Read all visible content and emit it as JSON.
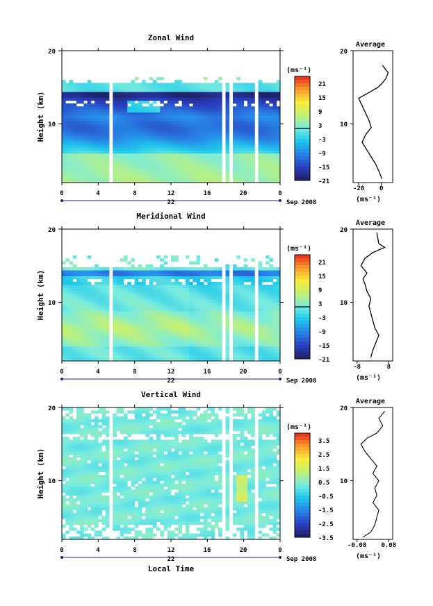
{
  "chart_data": [
    {
      "type": "heatmap",
      "title": "Zonal Wind",
      "ylabel": "Height (km)",
      "xlabel": "",
      "xlim": [
        0,
        24
      ],
      "ylim": [
        2,
        20
      ],
      "x_ticks": [
        "0",
        "4",
        "8",
        "12",
        "16",
        "20",
        "0"
      ],
      "y_ticks": [
        "20",
        "10"
      ],
      "date_label": "22",
      "month_label": "Sep 2008",
      "colorbar": {
        "unit": "(ms⁻¹)",
        "ticks": [
          "21",
          "15",
          "9",
          "3",
          "-3",
          "-9",
          "-15",
          "-21"
        ],
        "range": [
          -24,
          24
        ],
        "zero_line": true
      },
      "profile": {
        "title": "Average",
        "xlabel": "(ms⁻¹)",
        "x_ticks": [
          "-20",
          "0"
        ],
        "xlim": [
          -25,
          10
        ],
        "y_ticks": [
          "20",
          "10"
        ],
        "points": [
          [
            0.5,
            2.5
          ],
          [
            -2,
            3.5
          ],
          [
            -5,
            4.5
          ],
          [
            -9,
            5.5
          ],
          [
            -13,
            6.5
          ],
          [
            -17,
            7.5
          ],
          [
            -14,
            8.5
          ],
          [
            -9,
            9.5
          ],
          [
            -11,
            10.5
          ],
          [
            -14,
            11.5
          ],
          [
            -17,
            12.5
          ],
          [
            -20,
            13.5
          ],
          [
            -12,
            14.2
          ],
          [
            -3,
            15
          ],
          [
            1,
            15.6
          ],
          [
            4,
            16.2
          ],
          [
            6,
            17
          ],
          [
            3,
            17.6
          ],
          [
            1,
            18
          ]
        ]
      },
      "gaps_hours": [
        5.6,
        17.7,
        18.5,
        21.5
      ]
    },
    {
      "type": "heatmap",
      "title": "Meridional Wind",
      "ylabel": "Height (km)",
      "xlabel": "",
      "xlim": [
        0,
        24
      ],
      "ylim": [
        2,
        20
      ],
      "x_ticks": [
        "0",
        "4",
        "8",
        "12",
        "16",
        "20",
        "0"
      ],
      "y_ticks": [
        "20",
        "10"
      ],
      "date_label": "22",
      "month_label": "Sep 2008",
      "colorbar": {
        "unit": "(ms⁻¹)",
        "ticks": [
          "21",
          "15",
          "9",
          "3",
          "-3",
          "-9",
          "-15",
          "-21"
        ],
        "range": [
          -24,
          24
        ],
        "zero_line": true
      },
      "profile": {
        "title": "Average",
        "xlabel": "(ms⁻¹)",
        "x_ticks": [
          "-8",
          "8"
        ],
        "xlim": [
          -10,
          10
        ],
        "y_ticks": [
          "20",
          "10"
        ],
        "points": [
          [
            -1,
            2.5
          ],
          [
            0,
            3.5
          ],
          [
            1.5,
            4.5
          ],
          [
            3,
            5.5
          ],
          [
            1,
            6.5
          ],
          [
            0,
            7.5
          ],
          [
            -1,
            8.5
          ],
          [
            -2,
            9.5
          ],
          [
            -1,
            10.5
          ],
          [
            -3,
            11.5
          ],
          [
            -4,
            12.5
          ],
          [
            -5,
            13.2
          ],
          [
            -3,
            14
          ],
          [
            -6,
            15
          ],
          [
            -4,
            16
          ],
          [
            0,
            16.8
          ],
          [
            6,
            17.5
          ],
          [
            3,
            18
          ],
          [
            2,
            19.5
          ]
        ]
      },
      "gaps_hours": [
        5.6,
        17.7,
        18.5,
        21.5
      ]
    },
    {
      "type": "heatmap",
      "title": "Vertical Wind",
      "ylabel": "Height (km)",
      "xlabel": "Local Time",
      "xlim": [
        0,
        24
      ],
      "ylim": [
        2,
        20
      ],
      "x_ticks": [
        "0",
        "4",
        "8",
        "12",
        "16",
        "20",
        "0"
      ],
      "y_ticks": [
        "20",
        "10"
      ],
      "date_label": "22",
      "month_label": "Sep 2008",
      "colorbar": {
        "unit": "(ms⁻¹)",
        "ticks": [
          "3.5",
          "2.5",
          "1.5",
          "0.5",
          "-0.5",
          "-1.5",
          "-2.5",
          "-3.5"
        ],
        "range": [
          -4,
          4
        ],
        "zero_line": false
      },
      "profile": {
        "title": "Average",
        "xlabel": "(ms⁻¹)",
        "x_ticks": [
          "-0.08",
          "0.08"
        ],
        "xlim": [
          -0.1,
          0.1
        ],
        "y_ticks": [
          "20",
          "10"
        ],
        "points": [
          [
            -0.05,
            2.3
          ],
          [
            -0.01,
            3
          ],
          [
            0.01,
            4
          ],
          [
            0.02,
            5
          ],
          [
            0.03,
            6
          ],
          [
            0.0,
            7
          ],
          [
            0.02,
            8
          ],
          [
            0.01,
            9
          ],
          [
            0.03,
            10
          ],
          [
            0.0,
            11
          ],
          [
            0.02,
            12
          ],
          [
            -0.01,
            13
          ],
          [
            -0.04,
            14
          ],
          [
            -0.06,
            15
          ],
          [
            -0.03,
            15.8
          ],
          [
            0.02,
            16.5
          ],
          [
            0.05,
            17.5
          ],
          [
            0.03,
            18.5
          ],
          [
            0.06,
            19.5
          ]
        ]
      },
      "gaps_hours": [
        5.6,
        17.7,
        18.5,
        21.5
      ]
    }
  ]
}
